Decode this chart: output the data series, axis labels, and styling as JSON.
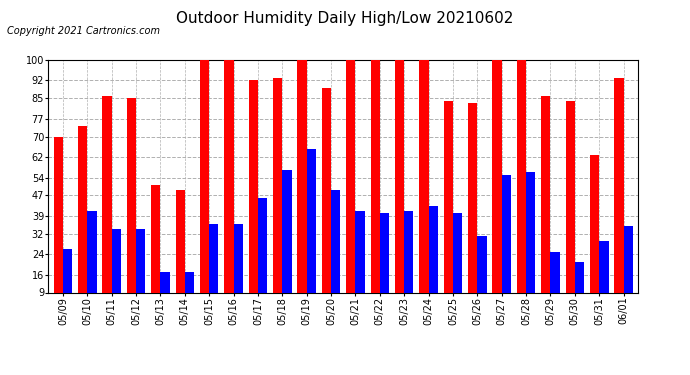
{
  "title": "Outdoor Humidity Daily High/Low 20210602",
  "copyright": "Copyright 2021 Cartronics.com",
  "dates": [
    "05/09",
    "05/10",
    "05/11",
    "05/12",
    "05/13",
    "05/14",
    "05/15",
    "05/16",
    "05/17",
    "05/18",
    "05/19",
    "05/20",
    "05/21",
    "05/22",
    "05/23",
    "05/24",
    "05/25",
    "05/26",
    "05/27",
    "05/28",
    "05/29",
    "05/30",
    "05/31",
    "06/01"
  ],
  "high": [
    70,
    74,
    86,
    85,
    51,
    49,
    100,
    100,
    92,
    93,
    100,
    89,
    100,
    100,
    100,
    100,
    84,
    83,
    100,
    100,
    86,
    84,
    63,
    93
  ],
  "low": [
    26,
    41,
    34,
    34,
    17,
    17,
    36,
    36,
    46,
    57,
    65,
    49,
    41,
    40,
    41,
    43,
    40,
    31,
    55,
    56,
    25,
    21,
    29,
    35
  ],
  "high_color": "#ff0000",
  "low_color": "#0000ff",
  "bg_color": "#ffffff",
  "plot_bg_color": "#ffffff",
  "grid_color": "#b0b0b0",
  "yticks": [
    9,
    16,
    24,
    32,
    39,
    47,
    54,
    62,
    70,
    77,
    85,
    92,
    100
  ],
  "ymin": 9,
  "ymax": 100,
  "bar_width": 0.38,
  "title_fontsize": 11,
  "tick_fontsize": 7,
  "legend_fontsize": 8.5
}
